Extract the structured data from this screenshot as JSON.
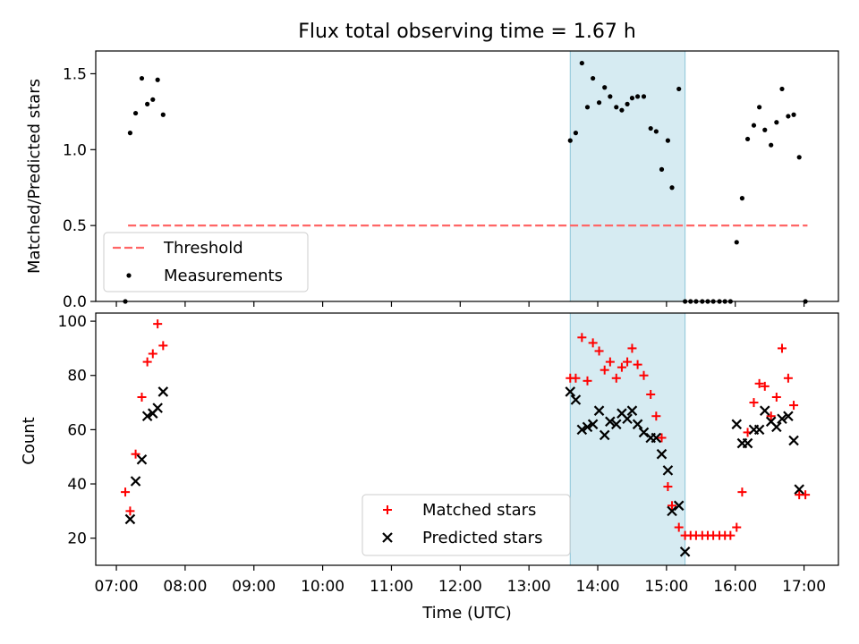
{
  "chart_data": [
    {
      "type": "scatter",
      "title": "Flux total observing time = 1.67 h",
      "xlabel": "",
      "ylabel": "Matched/Predicted stars",
      "xlim": [
        6.7,
        17.5
      ],
      "ylim": [
        0,
        1.65
      ],
      "yticks": [
        0.0,
        0.5,
        1.0,
        1.5
      ],
      "ytick_labels": [
        "0.0",
        "0.5",
        "1.0",
        "1.5"
      ],
      "highlight_span": [
        13.6,
        15.27
      ],
      "threshold": {
        "value": 0.5,
        "x_start": 7.17,
        "x_end": 17.05,
        "color": "#ff6666"
      },
      "legend": {
        "position": "lower-left",
        "entries": [
          "Threshold",
          "Measurements"
        ]
      },
      "series": [
        {
          "name": "Measurements",
          "marker": "dot",
          "color": "#000000",
          "x": [
            7.13,
            7.2,
            7.28,
            7.37,
            7.45,
            7.53,
            7.6,
            7.68,
            13.6,
            13.68,
            13.77,
            13.85,
            13.93,
            14.02,
            14.1,
            14.18,
            14.27,
            14.35,
            14.43,
            14.5,
            14.58,
            14.67,
            14.77,
            14.85,
            14.93,
            15.02,
            15.08,
            15.18,
            15.27,
            15.35,
            15.43,
            15.52,
            15.6,
            15.68,
            15.77,
            15.85,
            15.93,
            16.02,
            16.1,
            16.18,
            16.27,
            16.35,
            16.43,
            16.52,
            16.6,
            16.68,
            16.77,
            16.85,
            16.93,
            17.02
          ],
          "y": [
            0.0,
            1.11,
            1.24,
            1.47,
            1.3,
            1.33,
            1.46,
            1.23,
            1.06,
            1.11,
            1.57,
            1.28,
            1.47,
            1.31,
            1.41,
            1.35,
            1.28,
            1.26,
            1.3,
            1.34,
            1.35,
            1.35,
            1.14,
            1.12,
            0.87,
            1.06,
            0.75,
            1.4,
            0.0,
            0.0,
            0.0,
            0.0,
            0.0,
            0.0,
            0.0,
            0.0,
            0.0,
            0.39,
            0.68,
            1.07,
            1.16,
            1.28,
            1.13,
            1.03,
            1.18,
            1.4,
            1.22,
            1.23,
            0.95,
            0.0
          ]
        }
      ]
    },
    {
      "type": "scatter",
      "title": "",
      "xlabel": "Time (UTC)",
      "ylabel": "Count",
      "xlim": [
        6.7,
        17.5
      ],
      "ylim": [
        10,
        103
      ],
      "yticks": [
        20,
        40,
        60,
        80,
        100
      ],
      "ytick_labels": [
        "20",
        "40",
        "60",
        "80",
        "100"
      ],
      "xticks": [
        7,
        8,
        9,
        10,
        11,
        12,
        13,
        14,
        15,
        16,
        17
      ],
      "xtick_labels": [
        "07:00",
        "08:00",
        "09:00",
        "10:00",
        "11:00",
        "12:00",
        "13:00",
        "14:00",
        "15:00",
        "16:00",
        "17:00"
      ],
      "highlight_span": [
        13.6,
        15.27
      ],
      "legend": {
        "position": "lower-center",
        "entries": [
          "Matched stars",
          "Predicted stars"
        ]
      },
      "series": [
        {
          "name": "Matched stars",
          "marker": "plus",
          "color": "#ff0000",
          "x": [
            7.13,
            7.2,
            7.28,
            7.37,
            7.45,
            7.53,
            7.6,
            7.68,
            13.6,
            13.68,
            13.77,
            13.85,
            13.93,
            14.02,
            14.1,
            14.18,
            14.27,
            14.35,
            14.43,
            14.5,
            14.58,
            14.67,
            14.77,
            14.85,
            14.93,
            15.02,
            15.08,
            15.18,
            15.27,
            15.35,
            15.43,
            15.52,
            15.6,
            15.68,
            15.77,
            15.85,
            15.93,
            16.02,
            16.1,
            16.18,
            16.27,
            16.35,
            16.43,
            16.52,
            16.6,
            16.68,
            16.77,
            16.85,
            16.93,
            17.02
          ],
          "y": [
            37,
            30,
            51,
            72,
            85,
            88,
            99,
            91,
            79,
            79,
            94,
            78,
            92,
            89,
            82,
            85,
            79,
            83,
            85,
            90,
            84,
            80,
            73,
            65,
            57,
            39,
            32,
            24,
            21,
            21,
            21,
            21,
            21,
            21,
            21,
            21,
            21,
            24,
            37,
            59,
            70,
            77,
            76,
            65,
            72,
            90,
            79,
            69,
            36,
            36
          ]
        },
        {
          "name": "Predicted stars",
          "marker": "x",
          "color": "#000000",
          "x": [
            7.2,
            7.28,
            7.37,
            7.45,
            7.53,
            7.6,
            7.68,
            13.6,
            13.68,
            13.77,
            13.85,
            13.93,
            14.02,
            14.1,
            14.18,
            14.27,
            14.35,
            14.43,
            14.5,
            14.58,
            14.67,
            14.77,
            14.85,
            14.93,
            15.02,
            15.08,
            15.18,
            15.27,
            16.02,
            16.1,
            16.18,
            16.27,
            16.35,
            16.43,
            16.52,
            16.6,
            16.68,
            16.77,
            16.85,
            16.93
          ],
          "y": [
            27,
            41,
            49,
            65,
            66,
            68,
            74,
            74,
            71,
            60,
            61,
            62,
            67,
            58,
            63,
            62,
            66,
            64,
            67,
            62,
            59,
            57,
            57,
            51,
            45,
            30,
            32,
            15,
            62,
            55,
            55,
            60,
            60,
            67,
            63,
            61,
            64,
            65,
            56,
            38
          ]
        }
      ]
    }
  ]
}
